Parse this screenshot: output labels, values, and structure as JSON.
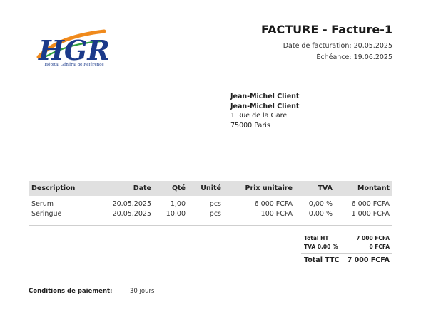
{
  "logo": {
    "icon": "hgr-logo",
    "letters": "HGR",
    "caption": "Hôpital Général de Référence"
  },
  "invoice": {
    "title": "FACTURE - Facture-1",
    "date_line": "Date de facturation: 20.05.2025",
    "due_line": "Échéance: 19.06.2025"
  },
  "recipient": {
    "line1": "Jean-Michel Client",
    "line2": "Jean-Michel Client",
    "address1": "1 Rue de la Gare",
    "address2": "75000 Paris"
  },
  "table": {
    "headers": [
      "Description",
      "Date",
      "Qté",
      "Unité",
      "Prix unitaire",
      "TVA",
      "Montant"
    ],
    "rows": [
      [
        "Serum",
        "20.05.2025",
        "1,00",
        "pcs",
        "6 000 FCFA",
        "0,00 %",
        "6 000 FCFA"
      ],
      [
        "Seringue",
        "20.05.2025",
        "10,00",
        "pcs",
        "100 FCFA",
        "0,00 %",
        "1 000 FCFA"
      ]
    ]
  },
  "totals": {
    "ht_label": "Total HT",
    "ht_value": "7 000 FCFA",
    "tva_label": "TVA 0.00 %",
    "tva_value": "0 FCFA",
    "ttc_label": "Total TTC",
    "ttc_value": "7 000 FCFA"
  },
  "payment": {
    "label": "Conditions de paiement:",
    "value": "30 jours"
  },
  "colors": {
    "header_bg": "#e0e0e0",
    "logo_blue": "#1b3a8a",
    "logo_orange": "#f08a1c",
    "logo_green": "#2e9e3e"
  }
}
